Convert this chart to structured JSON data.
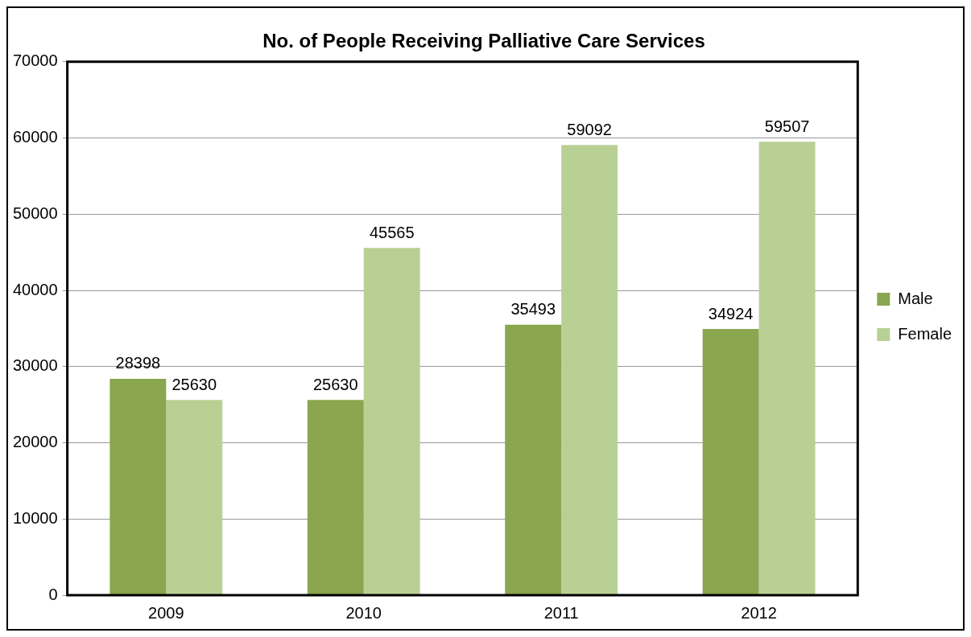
{
  "chart_data": {
    "type": "bar",
    "title": "No. of People Receiving Palliative Care Services",
    "categories": [
      "2009",
      "2010",
      "2011",
      "2012"
    ],
    "series": [
      {
        "name": "Male",
        "color": "#8aa64f",
        "values": [
          28398,
          25630,
          35493,
          34924
        ]
      },
      {
        "name": "Female",
        "color": "#b9d095",
        "values": [
          25630,
          45565,
          59092,
          59507
        ]
      }
    ],
    "ylim": [
      0,
      70000
    ],
    "yticks": [
      0,
      10000,
      20000,
      30000,
      40000,
      50000,
      60000,
      70000
    ],
    "grid": "y",
    "legend": "right",
    "data_labels": true
  }
}
